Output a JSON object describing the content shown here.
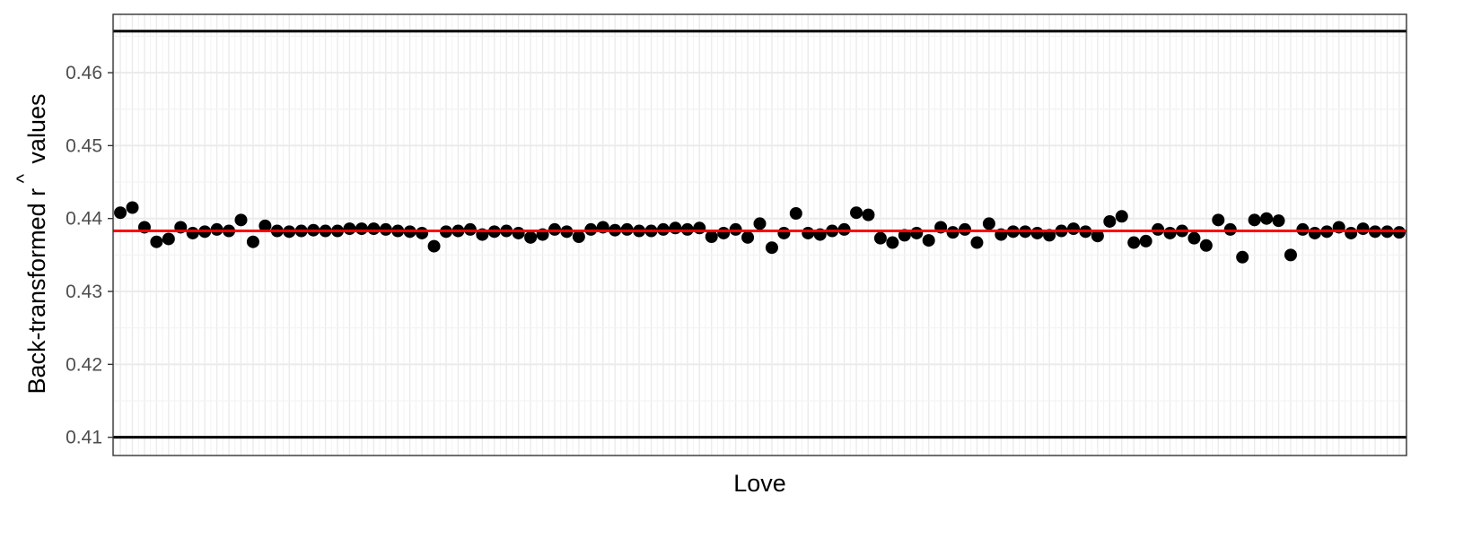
{
  "chart_data": {
    "type": "scatter",
    "title": "",
    "xlabel": "Love",
    "ylabel_main": "Back-transformed r",
    "ylabel_hat": "^",
    "ylabel_suffix": "values",
    "ylim": [
      0.4075,
      0.468
    ],
    "yticks": [
      "0.41",
      "0.42",
      "0.43",
      "0.44",
      "0.45",
      "0.46"
    ],
    "x_count": 107,
    "grid": true,
    "legend": "none",
    "reference_lines": {
      "mean": 0.4383,
      "upper": 0.4657,
      "lower": 0.41
    },
    "colors": {
      "points": "#000000",
      "mean_line": "#ff0000",
      "bound_lines": "#000000",
      "grid_major": "#ebebeb",
      "grid_minor": "#f3f3f3"
    },
    "values": [
      0.4408,
      0.4415,
      0.4388,
      0.4368,
      0.4372,
      0.4388,
      0.438,
      0.4382,
      0.4385,
      0.4383,
      0.4398,
      0.4368,
      0.439,
      0.4383,
      0.4382,
      0.4383,
      0.4384,
      0.4383,
      0.4383,
      0.4386,
      0.4386,
      0.4386,
      0.4385,
      0.4383,
      0.4382,
      0.438,
      0.4362,
      0.4382,
      0.4383,
      0.4385,
      0.4378,
      0.4382,
      0.4383,
      0.438,
      0.4374,
      0.4378,
      0.4385,
      0.4382,
      0.4375,
      0.4385,
      0.4388,
      0.4384,
      0.4385,
      0.4383,
      0.4383,
      0.4385,
      0.4387,
      0.4385,
      0.4387,
      0.4375,
      0.438,
      0.4385,
      0.4374,
      0.4393,
      0.436,
      0.438,
      0.4407,
      0.438,
      0.4378,
      0.4383,
      0.4385,
      0.4408,
      0.4405,
      0.4373,
      0.4367,
      0.4377,
      0.438,
      0.437,
      0.4388,
      0.4381,
      0.4385,
      0.4367,
      0.4393,
      0.4378,
      0.4382,
      0.4382,
      0.438,
      0.4377,
      0.4383,
      0.4386,
      0.4382,
      0.4376,
      0.4396,
      0.4403,
      0.4367,
      0.4369,
      0.4385,
      0.438,
      0.4383,
      0.4373,
      0.4363,
      0.4398,
      0.4385,
      0.4347,
      0.4398,
      0.44,
      0.4397,
      0.435,
      0.4385,
      0.438,
      0.4382,
      0.4388,
      0.438,
      0.4386,
      0.4382,
      0.4382,
      0.4381
    ]
  }
}
